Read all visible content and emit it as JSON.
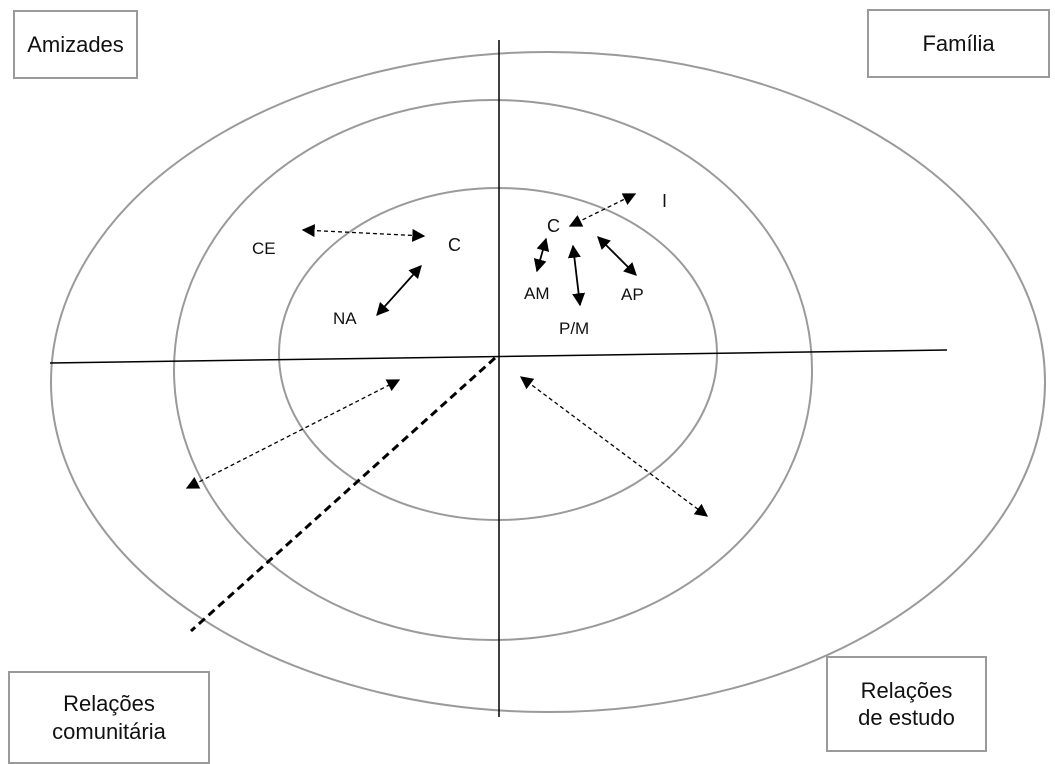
{
  "quadrant_boxes": {
    "top_left": "Amizades",
    "top_right": "Família",
    "bottom_left": "Relações\ncomunitária",
    "bottom_right": "Relações\nde estudo"
  },
  "node_labels": {
    "ce": "CE",
    "c_friends": "C",
    "na": "NA",
    "c_family": "C",
    "i": "I",
    "am": "AM",
    "pm": "P/M",
    "ap": "AP"
  },
  "colors": {
    "circle_stroke": "#9a9a9a",
    "axis": "#000000",
    "box_border": "#9a9a9a"
  }
}
